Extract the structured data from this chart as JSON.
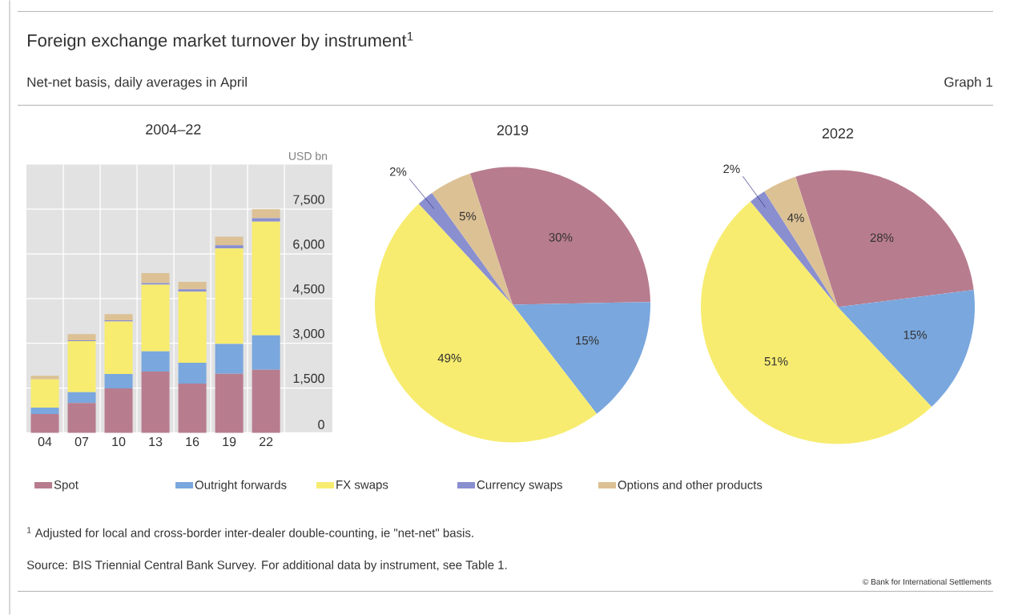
{
  "chart_data": [
    {
      "type": "bar",
      "stacked": true,
      "title": "2004–22",
      "ylabel": "USD bn",
      "categories": [
        "04",
        "07",
        "10",
        "13",
        "16",
        "19",
        "22"
      ],
      "series": [
        {
          "name": "Spot",
          "color": "#b87c8f",
          "values": [
            630,
            1000,
            1490,
            2050,
            1650,
            1980,
            2110
          ]
        },
        {
          "name": "Outright forwards",
          "color": "#7aa7dd",
          "values": [
            210,
            360,
            480,
            680,
            700,
            1000,
            1160
          ]
        },
        {
          "name": "FX swaps",
          "color": "#f7ec6f",
          "values": [
            950,
            1710,
            1760,
            2240,
            2380,
            3200,
            3810
          ]
        },
        {
          "name": "Currency swaps",
          "color": "#8a8fcf",
          "values": [
            null,
            30,
            40,
            50,
            80,
            110,
            120
          ]
        },
        {
          "name": "Options and other products",
          "color": "#dcc195",
          "values": [
            120,
            210,
            210,
            340,
            250,
            290,
            300
          ]
        }
      ],
      "ylim": [
        0,
        9000
      ],
      "yticks": [
        0,
        {
          "value": 1500,
          "label": "1,500"
        },
        {
          "value": 3000,
          "label": "3,000"
        },
        {
          "value": 4500,
          "label": "4,500"
        },
        {
          "value": 6000,
          "label": "6,000"
        },
        {
          "value": 7500,
          "label": "7,500"
        }
      ],
      "grid": true,
      "legend": "bottom",
      "annotations": [
        "Foreign exchange market turnover by instrument$^{1}$",
        "Net-net basis, daily averages in April",
        "Graph 1",
        "$^{1}$ Adjusted for local and cross-border inter-dealer double-counting, ie \"net-net\" basis.",
        "Source: BIS Triennial Central Bank Survey. For additional data by instrument, see Table 1.",
        "© Bank for International Settlements"
      ]
    },
    {
      "type": "pie",
      "title": "2019",
      "categories": [
        null,
        null,
        null,
        null,
        null
      ],
      "values": [
        30,
        15,
        49,
        2,
        5
      ],
      "colors": [
        "#b87c8f",
        "#7aa7dd",
        "#f7ec6f",
        "#8a8fcf",
        "#dcc195"
      ],
      "value_labels": [
        "30%",
        "15%",
        "49%",
        "2%",
        "5%"
      ]
    },
    {
      "type": "pie",
      "title": "2022",
      "categories": [
        null,
        null,
        null,
        null,
        null
      ],
      "values": [
        28,
        15,
        51,
        2,
        4
      ],
      "colors": [
        "#b87c8f",
        "#7aa7dd",
        "#f7ec6f",
        "#8a8fcf",
        "#dcc195"
      ],
      "value_labels": [
        "28%",
        "15%",
        "51%",
        "2%",
        "4%"
      ]
    }
  ]
}
